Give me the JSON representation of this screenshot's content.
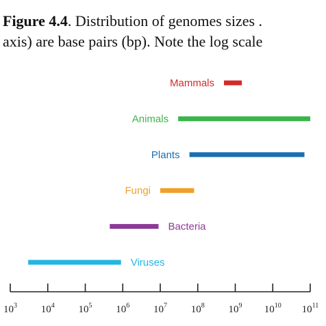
{
  "caption": {
    "label": "Figure 4.4",
    "line1_rest": ". Distribution of genomes sizes .",
    "line2": "axis) are base pairs (bp). Note the log scale"
  },
  "chart_data": {
    "type": "range-bar",
    "x_scale": "log10",
    "xlim": [
      1000,
      100000000000
    ],
    "xticks": [
      {
        "base": "10",
        "exp": "3",
        "value": 1000
      },
      {
        "base": "10",
        "exp": "4",
        "value": 10000
      },
      {
        "base": "10",
        "exp": "5",
        "value": 100000
      },
      {
        "base": "10",
        "exp": "6",
        "value": 1000000
      },
      {
        "base": "10",
        "exp": "7",
        "value": 10000000
      },
      {
        "base": "10",
        "exp": "8",
        "value": 100000000
      },
      {
        "base": "10",
        "exp": "9",
        "value": 1000000000
      },
      {
        "base": "10",
        "exp": "10",
        "value": 10000000000
      },
      {
        "base": "10",
        "exp": "11",
        "value": 100000000000
      }
    ],
    "series": [
      {
        "name": "Mammals",
        "min": 500000000,
        "max": 1500000000,
        "color": "#d42a2a",
        "label_side": "left"
      },
      {
        "name": "Animals",
        "min": 30000000,
        "max": 100000000000,
        "color": "#3bb54a",
        "label_side": "left"
      },
      {
        "name": "Plants",
        "min": 60000000,
        "max": 70000000000,
        "color": "#1a6fb0",
        "label_side": "left"
      },
      {
        "name": "Fungi",
        "min": 10000000,
        "max": 80000000,
        "color": "#f0a028",
        "label_side": "left"
      },
      {
        "name": "Bacteria",
        "min": 450000,
        "max": 9000000,
        "color": "#8b3a96",
        "label_side": "right"
      },
      {
        "name": "Viruses",
        "min": 3000,
        "max": 900000,
        "color": "#25b5e3",
        "label_side": "right"
      }
    ],
    "grid": false
  }
}
